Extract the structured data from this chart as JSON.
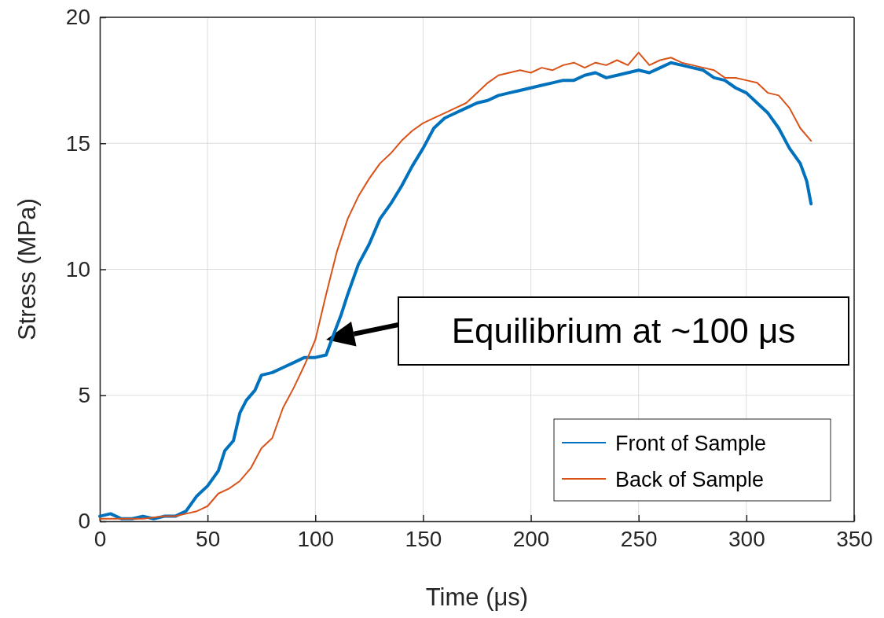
{
  "chart_data": {
    "type": "line",
    "xlabel": "Time (μs)",
    "ylabel": "Stress (MPa)",
    "xlim": [
      0,
      350
    ],
    "xticks": [
      0,
      50,
      100,
      150,
      200,
      250,
      300,
      350
    ],
    "ylim": [
      0,
      20
    ],
    "yticks": [
      0,
      5,
      10,
      15,
      20
    ],
    "grid": true,
    "legend": "bottom right",
    "annotations": [
      "Equilibrium at ~100 μs"
    ],
    "series": [
      {
        "name": "Front of Sample",
        "color": "#0072bd",
        "x": [
          0,
          5,
          10,
          15,
          20,
          25,
          30,
          35,
          40,
          45,
          50,
          55,
          58,
          62,
          65,
          68,
          72,
          75,
          80,
          85,
          90,
          95,
          100,
          105,
          108,
          112,
          115,
          120,
          125,
          130,
          135,
          140,
          145,
          150,
          155,
          160,
          165,
          170,
          175,
          180,
          185,
          190,
          195,
          200,
          205,
          210,
          215,
          220,
          225,
          230,
          235,
          240,
          245,
          250,
          255,
          260,
          265,
          270,
          275,
          280,
          285,
          290,
          295,
          300,
          305,
          310,
          315,
          320,
          325,
          328,
          330
        ],
        "values": [
          0.2,
          0.3,
          0.1,
          0.1,
          0.2,
          0.1,
          0.2,
          0.2,
          0.4,
          1.0,
          1.4,
          2.0,
          2.8,
          3.2,
          4.3,
          4.8,
          5.2,
          5.8,
          5.9,
          6.1,
          6.3,
          6.5,
          6.5,
          6.6,
          7.3,
          8.2,
          9.0,
          10.2,
          11.0,
          12.0,
          12.6,
          13.3,
          14.1,
          14.8,
          15.6,
          16.0,
          16.2,
          16.4,
          16.6,
          16.7,
          16.9,
          17.0,
          17.1,
          17.2,
          17.3,
          17.4,
          17.5,
          17.5,
          17.7,
          17.8,
          17.6,
          17.7,
          17.8,
          17.9,
          17.8,
          18.0,
          18.2,
          18.1,
          18.0,
          17.9,
          17.6,
          17.5,
          17.2,
          17.0,
          16.6,
          16.2,
          15.6,
          14.8,
          14.2,
          13.5,
          12.6
        ]
      },
      {
        "name": "Back of Sample",
        "color": "#d95319",
        "x": [
          0,
          10,
          20,
          30,
          35,
          40,
          45,
          50,
          55,
          60,
          65,
          70,
          75,
          80,
          85,
          90,
          95,
          100,
          105,
          110,
          115,
          120,
          125,
          130,
          135,
          140,
          145,
          150,
          155,
          160,
          165,
          170,
          175,
          180,
          185,
          190,
          195,
          200,
          205,
          210,
          215,
          220,
          225,
          230,
          235,
          240,
          245,
          250,
          255,
          260,
          265,
          270,
          275,
          280,
          285,
          290,
          295,
          300,
          305,
          310,
          315,
          320,
          325,
          330
        ],
        "values": [
          0.1,
          0.1,
          0.1,
          0.2,
          0.2,
          0.3,
          0.4,
          0.6,
          1.1,
          1.3,
          1.6,
          2.1,
          2.9,
          3.3,
          4.5,
          5.3,
          6.2,
          7.2,
          9.0,
          10.7,
          12.0,
          12.9,
          13.6,
          14.2,
          14.6,
          15.1,
          15.5,
          15.8,
          16.0,
          16.2,
          16.4,
          16.6,
          17.0,
          17.4,
          17.7,
          17.8,
          17.9,
          17.8,
          18.0,
          17.9,
          18.1,
          18.2,
          18.0,
          18.2,
          18.1,
          18.3,
          18.1,
          18.6,
          18.1,
          18.3,
          18.4,
          18.2,
          18.1,
          18.0,
          17.9,
          17.6,
          17.6,
          17.5,
          17.4,
          17.0,
          16.9,
          16.4,
          15.6,
          15.1
        ]
      }
    ]
  }
}
